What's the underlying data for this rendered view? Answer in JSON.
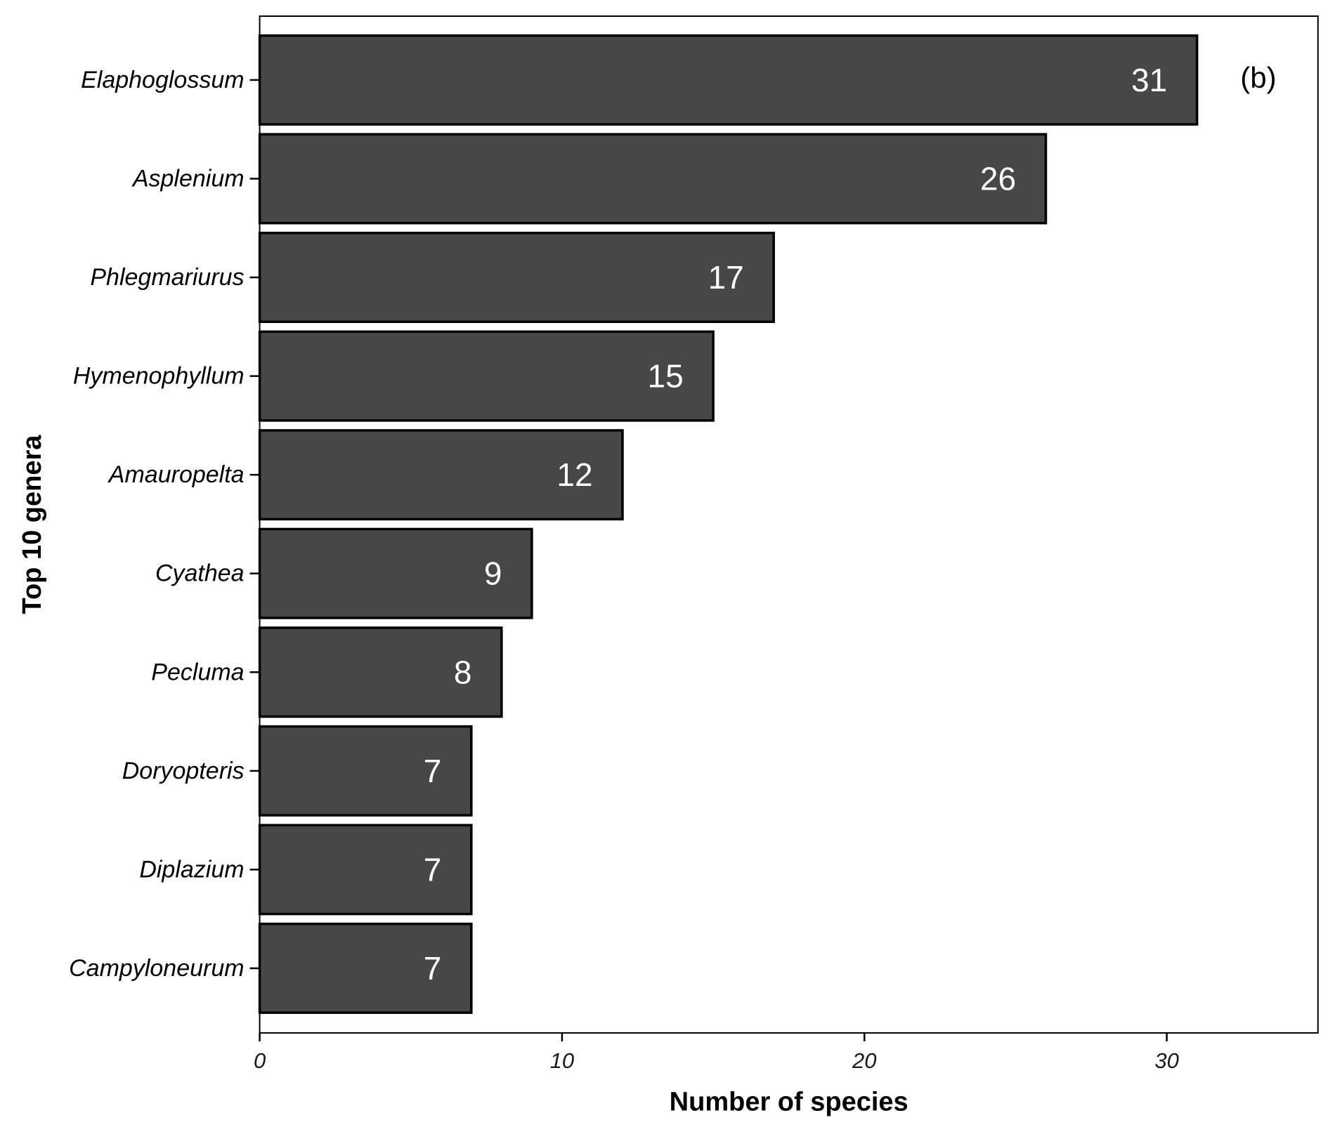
{
  "chart_data": {
    "type": "bar",
    "orientation": "horizontal",
    "panel_label": "(b)",
    "xlabel": "Number of species",
    "ylabel": "Top 10 genera",
    "xlim": [
      0,
      35
    ],
    "xticks": [
      0,
      10,
      20,
      30
    ],
    "categories": [
      "Elaphoglossum",
      "Asplenium",
      "Phlegmariurus",
      "Hymenophyllum",
      "Amauropelta",
      "Cyathea",
      "Pecluma",
      "Doryopteris",
      "Diplazium",
      "Campyloneurum"
    ],
    "values": [
      31,
      26,
      17,
      15,
      12,
      9,
      8,
      7,
      7,
      7
    ],
    "data_labels": [
      "31",
      "26",
      "17",
      "15",
      "12",
      "9",
      "8",
      "7",
      "7",
      "7"
    ],
    "grid": false,
    "legend": "none",
    "colors": {
      "bar_fill": "#474747",
      "bar_stroke": "#000000",
      "bar_label": "#ffffff",
      "axis": "#000000"
    }
  }
}
